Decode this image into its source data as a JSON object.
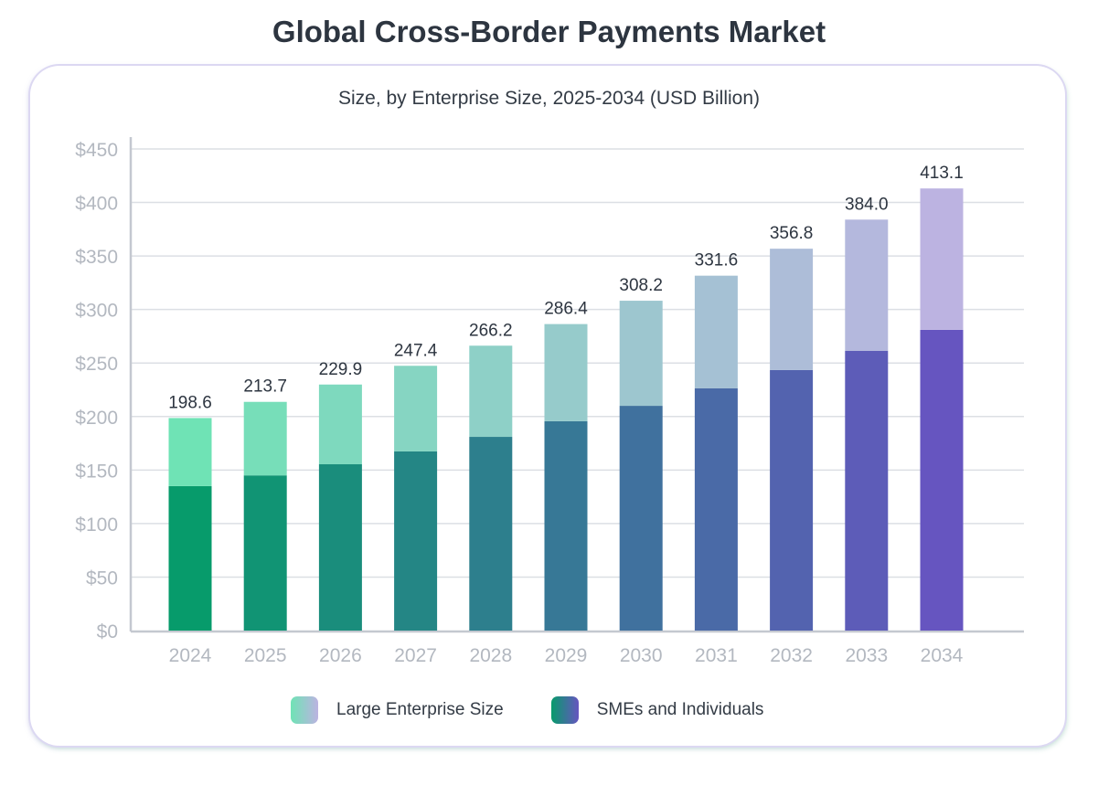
{
  "title": "Global Cross-Border Payments Market",
  "chart_data": {
    "type": "bar",
    "stacked": true,
    "subtitle": "Size, by Enterprise Size, 2025-2034 (USD Billion)",
    "categories": [
      "2024",
      "2025",
      "2026",
      "2027",
      "2028",
      "2029",
      "2030",
      "2031",
      "2032",
      "2033",
      "2034"
    ],
    "series": [
      {
        "name": "SMEs and Individuals",
        "values": [
          135,
          145,
          155.4,
          167.4,
          181,
          195.6,
          210,
          226.3,
          243.4,
          261.3,
          281
        ],
        "color_start": "#079b6b",
        "color_end": "#6655c0"
      },
      {
        "name": "Large Enterprise Size",
        "values": [
          63.6,
          68.7,
          74.5,
          80.0,
          85.2,
          90.8,
          98.2,
          105.3,
          113.4,
          122.7,
          132.1
        ],
        "color_start": "#6fe3b5",
        "color_end": "#bcb3e1"
      }
    ],
    "totals": [
      "198.6",
      "213.7",
      "229.9",
      "247.4",
      "266.2",
      "286.4",
      "308.2",
      "331.6",
      "356.8",
      "384.0",
      "413.1"
    ],
    "ylim": [
      0,
      450
    ],
    "yticks": [
      "$0",
      "$50",
      "$100",
      "$150",
      "$200",
      "$250",
      "$300",
      "$350",
      "$400",
      "$450"
    ],
    "grid": true,
    "legend": "bottom"
  }
}
